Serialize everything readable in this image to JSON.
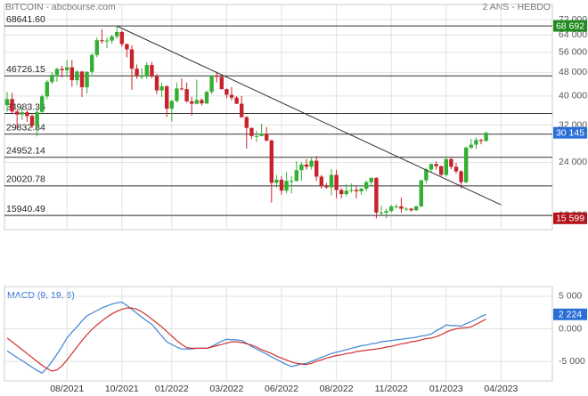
{
  "chart_data": [
    {
      "type": "candlestick",
      "title": "BITCOIN - abcbourse.com",
      "subtitle": "2 ANS - HEBDO",
      "categories": [
        null,
        null,
        null,
        null,
        null,
        null,
        null,
        null,
        null,
        null,
        null,
        null,
        "08/2021",
        null,
        null,
        null,
        null,
        null,
        null,
        null,
        null,
        null,
        null,
        "10/2021",
        null,
        null,
        null,
        null,
        null,
        null,
        null,
        null,
        null,
        "01/2022",
        null,
        null,
        null,
        null,
        null,
        null,
        null,
        null,
        null,
        null,
        "03/2022",
        null,
        null,
        null,
        null,
        null,
        null,
        null,
        null,
        null,
        null,
        "06/2022",
        null,
        null,
        null,
        null,
        null,
        null,
        null,
        null,
        null,
        null,
        "08/2022",
        null,
        null,
        null,
        null,
        null,
        null,
        null,
        null,
        null,
        null,
        "11/2022",
        null,
        null,
        null,
        null,
        null,
        null,
        null,
        null,
        null,
        null,
        "01/2023",
        null,
        null,
        null,
        null,
        null,
        null,
        null,
        null,
        null,
        null,
        "04/2023"
      ],
      "open": [
        37300,
        39100,
        35500,
        34700,
        35300,
        34300,
        31800,
        35400,
        39900,
        44600,
        47100,
        49300,
        48800,
        49900,
        45200,
        48300,
        42800,
        48200,
        54900,
        61500,
        61000,
        61300,
        63300,
        65500,
        59700,
        57300,
        49400,
        46700,
        46700,
        50800,
        46500,
        41800,
        43100,
        36300,
        38500,
        42400,
        42200,
        38400,
        37700,
        38800,
        37800,
        41300,
        46800,
        46400,
        42200,
        40400,
        39500,
        37700,
        34000,
        31300,
        29400,
        29400,
        29900,
        28400,
        20500,
        21000,
        19300,
        20800,
        20800,
        22600,
        23600,
        23200,
        24300,
        21500,
        20000,
        19800,
        21800,
        19400,
        18800,
        19300,
        19400,
        19200,
        19600,
        20600,
        21300,
        16300,
        16300,
        16500,
        17100,
        17100,
        16800,
        16800,
        16600,
        17100,
        20900,
        22700,
        23700,
        23300,
        21800,
        24600,
        23200,
        22400,
        20600,
        26900,
        27500,
        28500,
        28300,
        null,
        null,
        null
      ],
      "high": [
        41300,
        41000,
        36000,
        36600,
        35900,
        34800,
        36400,
        40500,
        45300,
        48100,
        49700,
        50500,
        52800,
        52900,
        48800,
        48500,
        48400,
        55700,
        62800,
        67000,
        62900,
        64200,
        68600,
        66300,
        59900,
        59200,
        51000,
        49500,
        51900,
        52000,
        47500,
        44400,
        43500,
        38900,
        44400,
        45800,
        44400,
        39800,
        45400,
        39300,
        41700,
        47000,
        48200,
        47400,
        42400,
        42900,
        40000,
        40000,
        34300,
        31400,
        30600,
        32300,
        31500,
        28600,
        21800,
        21600,
        22300,
        21600,
        24200,
        24100,
        24600,
        25100,
        25200,
        21800,
        20500,
        22800,
        22700,
        19700,
        20300,
        20400,
        19900,
        19700,
        20900,
        21400,
        21400,
        17200,
        16800,
        17300,
        17400,
        18300,
        17000,
        16900,
        17200,
        21000,
        23000,
        23800,
        24200,
        23400,
        25200,
        25000,
        23900,
        22600,
        27100,
        28800,
        29100,
        28800,
        30400,
        null,
        null,
        null
      ],
      "low": [
        35400,
        34800,
        31000,
        33300,
        32800,
        31200,
        29300,
        34800,
        39000,
        43800,
        44600,
        46200,
        46600,
        42900,
        43400,
        39700,
        40800,
        47100,
        53900,
        59900,
        57800,
        59800,
        62000,
        58400,
        53900,
        42000,
        45700,
        45500,
        45600,
        45900,
        40600,
        39700,
        34000,
        32900,
        38100,
        41800,
        38000,
        34400,
        37500,
        37200,
        37600,
        40600,
        44400,
        42100,
        39300,
        38600,
        37600,
        33800,
        26700,
        28700,
        28100,
        29300,
        28200,
        17600,
        19700,
        18700,
        18900,
        18900,
        20700,
        20800,
        22700,
        22700,
        20800,
        19600,
        19600,
        18600,
        18200,
        18200,
        18500,
        19000,
        18200,
        18700,
        19200,
        20000,
        15600,
        16000,
        15600,
        16300,
        16800,
        16300,
        16500,
        16400,
        16500,
        17000,
        20400,
        22300,
        22700,
        21600,
        21500,
        22800,
        22000,
        19600,
        20400,
        26600,
        26600,
        27600,
        28200,
        null,
        null,
        null
      ],
      "close": [
        39100,
        35500,
        34700,
        35300,
        34300,
        31800,
        35400,
        39900,
        44600,
        47100,
        49300,
        48800,
        49900,
        45200,
        48300,
        42800,
        48200,
        54900,
        61500,
        61000,
        61300,
        63300,
        65500,
        59700,
        57300,
        49400,
        46700,
        46700,
        50800,
        46500,
        41800,
        43100,
        36300,
        38500,
        42400,
        42200,
        38400,
        37700,
        38800,
        37800,
        41300,
        46800,
        46400,
        42200,
        40400,
        39500,
        37700,
        34000,
        31300,
        29400,
        29400,
        29900,
        28400,
        20500,
        21000,
        19300,
        20800,
        20800,
        22600,
        23600,
        23200,
        24300,
        21500,
        20000,
        19800,
        21800,
        19400,
        18800,
        19300,
        19400,
        19200,
        19600,
        20600,
        21300,
        16300,
        16300,
        16500,
        17100,
        17100,
        16800,
        16800,
        16600,
        17100,
        20900,
        22700,
        23700,
        23300,
        21800,
        24600,
        23200,
        22400,
        20600,
        26900,
        27500,
        28500,
        28300,
        30145,
        null,
        null,
        null
      ],
      "up_color": "#33b033",
      "down_color": "#c8232c",
      "log_scale": true,
      "grid": true,
      "ylim": [
        14300,
        81000
      ],
      "yticks": [
        {
          "value": 16000,
          "label": "16 000"
        },
        {
          "value": 24000,
          "label": "24 000"
        },
        {
          "value": 32000,
          "label": "32 000"
        },
        {
          "value": 40000,
          "label": "40 000"
        },
        {
          "value": 48000,
          "label": "48 000"
        },
        {
          "value": 56000,
          "label": "56 000"
        },
        {
          "value": 64000,
          "label": "64 000"
        },
        {
          "value": 72000,
          "label": "72 000"
        }
      ],
      "levels": [
        {
          "value": 68641.6,
          "label": "68641.60"
        },
        46726.15,
        34983.36,
        29832.84,
        24952.14,
        20020.78,
        15940.49
      ],
      "trendline": {
        "x": [
          22,
          99
        ],
        "values": [
          68600,
          17300
        ]
      },
      "price_markers": [
        {
          "value": 68692,
          "label": "68 692",
          "color": "#1f8a1f"
        },
        {
          "value": 30145,
          "label": "30 145",
          "color": "#2a6fd6"
        },
        {
          "value": 15599,
          "label": "15 599",
          "color": "#b3131b"
        }
      ]
    },
    {
      "type": "line",
      "title": "MACD (9, 19, 6)",
      "series": [
        {
          "color": "#3b86d4",
          "values": [
            -3400,
            -3900,
            -4400,
            -4900,
            -5400,
            -5900,
            -6400,
            -6800,
            -6000,
            -5000,
            -3900,
            -2700,
            -1400,
            -500,
            300,
            1200,
            2000,
            2400,
            2800,
            3200,
            3500,
            3800,
            4000,
            4100,
            3600,
            3000,
            2400,
            1800,
            1200,
            700,
            -200,
            -1100,
            -2000,
            -2400,
            -2800,
            -3100,
            -3100,
            -3100,
            -3000,
            -3000,
            -3000,
            -2700,
            -2300,
            -1900,
            -1600,
            -1700,
            -1700,
            -1800,
            -2200,
            -2700,
            -3100,
            -3500,
            -3900,
            -4300,
            -4700,
            -5100,
            -5500,
            -5800,
            -5600,
            -5400,
            -5300,
            -5000,
            -4700,
            -4400,
            -4100,
            -3800,
            -3600,
            -3400,
            -3200,
            -3000,
            -2800,
            -2600,
            -2500,
            -2300,
            -2200,
            -2000,
            -1900,
            -1800,
            -1700,
            -1600,
            -1500,
            -1400,
            -1300,
            -1100,
            -1000,
            -800,
            -300,
            100,
            600,
            500,
            500,
            400,
            800,
            1100,
            1500,
            1900,
            2224,
            null,
            null,
            null
          ]
        },
        {
          "color": "#d0312d",
          "values": [
            -1400,
            -2000,
            -2600,
            -3200,
            -3800,
            -4400,
            -5000,
            -5600,
            -6100,
            -6500,
            -6300,
            -5700,
            -4800,
            -3800,
            -2800,
            -1800,
            -900,
            -100,
            600,
            1200,
            1800,
            2300,
            2700,
            3000,
            3200,
            3200,
            3000,
            2600,
            2100,
            1500,
            900,
            300,
            -400,
            -1100,
            -1800,
            -2400,
            -2900,
            -3000,
            -3000,
            -3000,
            -3000,
            -2800,
            -2600,
            -2400,
            -2200,
            -2000,
            -2000,
            -2100,
            -2300,
            -2500,
            -2800,
            -3200,
            -3500,
            -3800,
            -4200,
            -4500,
            -4800,
            -5100,
            -5300,
            -5400,
            -5500,
            -5300,
            -5000,
            -4800,
            -4500,
            -4300,
            -4100,
            -4000,
            -3800,
            -3700,
            -3500,
            -3400,
            -3300,
            -3200,
            -3100,
            -3000,
            -2800,
            -2700,
            -2500,
            -2300,
            -2200,
            -2000,
            -1900,
            -1700,
            -1500,
            -1400,
            -1200,
            -900,
            -500,
            -200,
            0,
            100,
            200,
            300,
            700,
            1100,
            1500,
            null,
            null,
            null
          ]
        }
      ],
      "grid": true,
      "ylim": [
        -8000,
        6500
      ],
      "yticks": [
        {
          "value": -5000,
          "label": "-5 000"
        },
        {
          "value": 0,
          "label": "0.000"
        },
        {
          "value": 5000,
          "label": "5 000"
        }
      ],
      "price_markers": [
        {
          "value": 2224,
          "label": "2 224",
          "color": "#2a6fd6"
        }
      ]
    }
  ]
}
